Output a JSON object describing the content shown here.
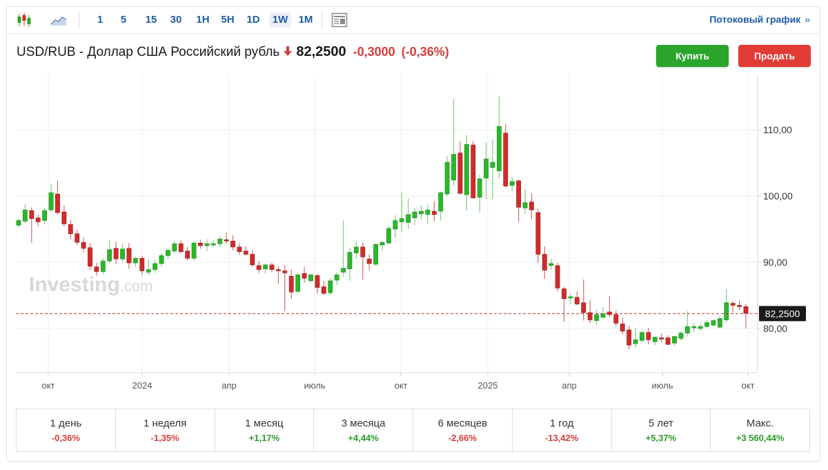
{
  "toolbar": {
    "timeframes": [
      "1",
      "5",
      "15",
      "30",
      "1H",
      "5H",
      "1D",
      "1W",
      "1M"
    ],
    "active_timeframe": "1W",
    "stream_link": "Потоковый график",
    "stream_chevron": "»"
  },
  "header": {
    "title": "USD/RUB - Доллар США Российский рубль",
    "price": "82,2500",
    "change": "-0,3000",
    "change_pct": "(-0,36%)",
    "direction_icon": "down-arrow-icon",
    "buy_label": "Купить",
    "sell_label": "Продать"
  },
  "colors": {
    "up": "#2ab82a",
    "down": "#d42a2a",
    "accent": "#1e5ba8"
  },
  "watermark": {
    "brand": "Investing",
    "suffix": ".com"
  },
  "chart_data": {
    "type": "candlestick",
    "yaxis": {
      "ticks": [
        80,
        90,
        100,
        110
      ],
      "tick_labels": [
        "80,00",
        "90,00",
        "100,00",
        "110,00"
      ],
      "position": "right"
    },
    "xaxis": {
      "tick_labels": [
        "окт",
        "2024",
        "апр",
        "июль",
        "окт",
        "2025",
        "апр",
        "июль",
        "окт"
      ]
    },
    "current_price": 82.25,
    "current_price_label": "82,2500",
    "grid": true,
    "candles": [
      {
        "o": 95.6,
        "h": 96.6,
        "l": 95.2,
        "c": 96.3
      },
      {
        "o": 96.2,
        "h": 98.8,
        "l": 95.9,
        "c": 97.9
      },
      {
        "o": 97.8,
        "h": 98.3,
        "l": 92.9,
        "c": 96.6
      },
      {
        "o": 96.7,
        "h": 97.2,
        "l": 95.4,
        "c": 96.1
      },
      {
        "o": 96.3,
        "h": 98.2,
        "l": 95.8,
        "c": 97.8
      },
      {
        "o": 97.9,
        "h": 101.8,
        "l": 97.6,
        "c": 100.5
      },
      {
        "o": 100.3,
        "h": 102.3,
        "l": 97.2,
        "c": 97.5
      },
      {
        "o": 97.6,
        "h": 98.6,
        "l": 95.4,
        "c": 95.8
      },
      {
        "o": 95.7,
        "h": 96.4,
        "l": 93.5,
        "c": 94.3
      },
      {
        "o": 94.3,
        "h": 94.9,
        "l": 92.6,
        "c": 93.0
      },
      {
        "o": 93.0,
        "h": 93.7,
        "l": 91.5,
        "c": 92.1
      },
      {
        "o": 92.2,
        "h": 92.9,
        "l": 88.8,
        "c": 89.4
      },
      {
        "o": 89.3,
        "h": 89.9,
        "l": 88.0,
        "c": 88.6
      },
      {
        "o": 88.6,
        "h": 90.6,
        "l": 88.2,
        "c": 90.2
      },
      {
        "o": 90.2,
        "h": 93.3,
        "l": 89.8,
        "c": 91.9
      },
      {
        "o": 92.1,
        "h": 93.1,
        "l": 89.7,
        "c": 90.5
      },
      {
        "o": 90.5,
        "h": 92.8,
        "l": 90.1,
        "c": 92.0
      },
      {
        "o": 92.1,
        "h": 92.9,
        "l": 89.0,
        "c": 89.9
      },
      {
        "o": 89.9,
        "h": 90.8,
        "l": 89.3,
        "c": 90.6
      },
      {
        "o": 90.6,
        "h": 91.0,
        "l": 88.1,
        "c": 88.7
      },
      {
        "o": 88.5,
        "h": 90.4,
        "l": 88.1,
        "c": 88.9
      },
      {
        "o": 88.9,
        "h": 90.3,
        "l": 88.4,
        "c": 89.8
      },
      {
        "o": 89.8,
        "h": 91.4,
        "l": 89.3,
        "c": 91.0
      },
      {
        "o": 91.0,
        "h": 92.2,
        "l": 90.5,
        "c": 91.8
      },
      {
        "o": 91.7,
        "h": 93.2,
        "l": 91.4,
        "c": 92.8
      },
      {
        "o": 92.8,
        "h": 93.3,
        "l": 91.3,
        "c": 91.6
      },
      {
        "o": 91.7,
        "h": 92.3,
        "l": 90.3,
        "c": 90.6
      },
      {
        "o": 90.6,
        "h": 93.2,
        "l": 90.3,
        "c": 92.9
      },
      {
        "o": 92.9,
        "h": 93.4,
        "l": 92.0,
        "c": 92.5
      },
      {
        "o": 92.5,
        "h": 93.5,
        "l": 91.7,
        "c": 92.8
      },
      {
        "o": 92.6,
        "h": 93.4,
        "l": 92.3,
        "c": 92.8
      },
      {
        "o": 92.8,
        "h": 93.9,
        "l": 92.3,
        "c": 93.5
      },
      {
        "o": 93.4,
        "h": 94.5,
        "l": 92.8,
        "c": 93.2
      },
      {
        "o": 93.2,
        "h": 94.1,
        "l": 91.8,
        "c": 92.3
      },
      {
        "o": 92.3,
        "h": 92.9,
        "l": 91.1,
        "c": 91.6
      },
      {
        "o": 91.7,
        "h": 92.4,
        "l": 91.0,
        "c": 91.2
      },
      {
        "o": 91.2,
        "h": 91.8,
        "l": 89.3,
        "c": 89.6
      },
      {
        "o": 89.5,
        "h": 90.2,
        "l": 88.4,
        "c": 88.9
      },
      {
        "o": 89.0,
        "h": 89.8,
        "l": 88.3,
        "c": 89.6
      },
      {
        "o": 89.6,
        "h": 89.9,
        "l": 88.5,
        "c": 88.9
      },
      {
        "o": 88.9,
        "h": 89.4,
        "l": 86.8,
        "c": 88.7
      },
      {
        "o": 88.7,
        "h": 89.5,
        "l": 82.6,
        "c": 88.4
      },
      {
        "o": 87.9,
        "h": 88.9,
        "l": 84.5,
        "c": 85.5
      },
      {
        "o": 85.6,
        "h": 88.4,
        "l": 85.3,
        "c": 88.1
      },
      {
        "o": 88.3,
        "h": 89.3,
        "l": 86.9,
        "c": 87.6
      },
      {
        "o": 87.2,
        "h": 88.3,
        "l": 87.0,
        "c": 88.1
      },
      {
        "o": 88.0,
        "h": 88.3,
        "l": 85.3,
        "c": 86.2
      },
      {
        "o": 86.3,
        "h": 87.2,
        "l": 85.1,
        "c": 85.3
      },
      {
        "o": 85.4,
        "h": 87.6,
        "l": 85.1,
        "c": 87.2
      },
      {
        "o": 87.3,
        "h": 88.5,
        "l": 86.6,
        "c": 88.1
      },
      {
        "o": 88.5,
        "h": 96.3,
        "l": 87.8,
        "c": 89.1
      },
      {
        "o": 89.0,
        "h": 92.2,
        "l": 87.2,
        "c": 91.5
      },
      {
        "o": 91.4,
        "h": 93.3,
        "l": 90.6,
        "c": 92.3
      },
      {
        "o": 92.3,
        "h": 93.0,
        "l": 87.4,
        "c": 90.8
      },
      {
        "o": 90.5,
        "h": 91.2,
        "l": 88.8,
        "c": 89.8
      },
      {
        "o": 89.7,
        "h": 92.9,
        "l": 89.5,
        "c": 92.7
      },
      {
        "o": 92.6,
        "h": 93.3,
        "l": 91.8,
        "c": 93.0
      },
      {
        "o": 92.9,
        "h": 95.5,
        "l": 92.7,
        "c": 95.1
      },
      {
        "o": 95.0,
        "h": 97.1,
        "l": 93.7,
        "c": 96.3
      },
      {
        "o": 96.1,
        "h": 100.6,
        "l": 94.6,
        "c": 96.6
      },
      {
        "o": 96.0,
        "h": 99.6,
        "l": 95.0,
        "c": 97.2
      },
      {
        "o": 96.7,
        "h": 98.2,
        "l": 95.6,
        "c": 97.6
      },
      {
        "o": 97.3,
        "h": 98.6,
        "l": 96.4,
        "c": 97.7
      },
      {
        "o": 97.2,
        "h": 98.7,
        "l": 95.8,
        "c": 97.9
      },
      {
        "o": 97.7,
        "h": 99.2,
        "l": 96.2,
        "c": 97.2
      },
      {
        "o": 97.7,
        "h": 100.7,
        "l": 96.3,
        "c": 100.5
      },
      {
        "o": 100.3,
        "h": 106.0,
        "l": 100.0,
        "c": 105.1
      },
      {
        "o": 102.4,
        "h": 114.6,
        "l": 101.6,
        "c": 106.3
      },
      {
        "o": 106.5,
        "h": 108.3,
        "l": 100.2,
        "c": 100.4
      },
      {
        "o": 100.2,
        "h": 109.2,
        "l": 97.8,
        "c": 107.8
      },
      {
        "o": 107.7,
        "h": 108.3,
        "l": 99.6,
        "c": 99.7
      },
      {
        "o": 99.8,
        "h": 103.2,
        "l": 97.5,
        "c": 102.6
      },
      {
        "o": 102.7,
        "h": 108.1,
        "l": 99.5,
        "c": 105.6
      },
      {
        "o": 104.3,
        "h": 108.5,
        "l": 99.5,
        "c": 105.1
      },
      {
        "o": 103.8,
        "h": 115.0,
        "l": 102.7,
        "c": 110.5
      },
      {
        "o": 109.5,
        "h": 110.9,
        "l": 101.3,
        "c": 101.5
      },
      {
        "o": 101.6,
        "h": 102.9,
        "l": 100.7,
        "c": 102.2
      },
      {
        "o": 102.3,
        "h": 102.4,
        "l": 96.1,
        "c": 98.3
      },
      {
        "o": 98.2,
        "h": 101.0,
        "l": 97.3,
        "c": 99.0
      },
      {
        "o": 99.1,
        "h": 100.4,
        "l": 96.5,
        "c": 97.9
      },
      {
        "o": 97.5,
        "h": 98.1,
        "l": 89.9,
        "c": 91.2
      },
      {
        "o": 91.2,
        "h": 92.4,
        "l": 87.5,
        "c": 88.8
      },
      {
        "o": 89.5,
        "h": 90.5,
        "l": 88.9,
        "c": 89.8
      },
      {
        "o": 89.5,
        "h": 89.9,
        "l": 85.6,
        "c": 86.1
      },
      {
        "o": 86.0,
        "h": 86.3,
        "l": 81.0,
        "c": 84.5
      },
      {
        "o": 84.6,
        "h": 85.3,
        "l": 83.7,
        "c": 84.8
      },
      {
        "o": 84.7,
        "h": 85.6,
        "l": 83.5,
        "c": 83.7
      },
      {
        "o": 83.9,
        "h": 87.4,
        "l": 81.2,
        "c": 82.4
      },
      {
        "o": 82.4,
        "h": 84.3,
        "l": 80.8,
        "c": 81.3
      },
      {
        "o": 81.2,
        "h": 82.8,
        "l": 80.6,
        "c": 82.1
      },
      {
        "o": 81.7,
        "h": 83.2,
        "l": 81.5,
        "c": 82.2
      },
      {
        "o": 82.5,
        "h": 84.9,
        "l": 81.7,
        "c": 82.1
      },
      {
        "o": 82.1,
        "h": 82.7,
        "l": 80.3,
        "c": 80.8
      },
      {
        "o": 80.7,
        "h": 81.6,
        "l": 79.1,
        "c": 79.6
      },
      {
        "o": 79.8,
        "h": 80.4,
        "l": 76.8,
        "c": 77.5
      },
      {
        "o": 77.7,
        "h": 80.1,
        "l": 77.1,
        "c": 78.3
      },
      {
        "o": 78.2,
        "h": 79.7,
        "l": 77.9,
        "c": 79.4
      },
      {
        "o": 79.4,
        "h": 80.1,
        "l": 77.6,
        "c": 78.3
      },
      {
        "o": 78.0,
        "h": 78.8,
        "l": 77.5,
        "c": 78.7
      },
      {
        "o": 78.6,
        "h": 79.2,
        "l": 77.9,
        "c": 78.4
      },
      {
        "o": 78.6,
        "h": 79.0,
        "l": 77.5,
        "c": 77.6
      },
      {
        "o": 77.8,
        "h": 78.9,
        "l": 77.4,
        "c": 78.8
      },
      {
        "o": 78.5,
        "h": 79.6,
        "l": 78.2,
        "c": 79.3
      },
      {
        "o": 79.3,
        "h": 82.6,
        "l": 78.8,
        "c": 80.3
      },
      {
        "o": 80.1,
        "h": 80.8,
        "l": 79.5,
        "c": 80.3
      },
      {
        "o": 80.0,
        "h": 80.7,
        "l": 79.6,
        "c": 80.3
      },
      {
        "o": 80.3,
        "h": 81.3,
        "l": 80.1,
        "c": 80.9
      },
      {
        "o": 80.5,
        "h": 81.4,
        "l": 80.3,
        "c": 81.2
      },
      {
        "o": 80.2,
        "h": 81.9,
        "l": 80.0,
        "c": 81.5
      },
      {
        "o": 81.3,
        "h": 85.9,
        "l": 80.9,
        "c": 83.9
      },
      {
        "o": 83.8,
        "h": 84.1,
        "l": 82.4,
        "c": 83.5
      },
      {
        "o": 83.5,
        "h": 84.2,
        "l": 82.8,
        "c": 83.3
      },
      {
        "o": 83.3,
        "h": 83.7,
        "l": 80.0,
        "c": 82.3
      }
    ]
  },
  "performance": [
    {
      "label": "1 день",
      "value": "-0,36%",
      "trend": "neg"
    },
    {
      "label": "1 неделя",
      "value": "-1,35%",
      "trend": "neg"
    },
    {
      "label": "1 месяц",
      "value": "+1,17%",
      "trend": "pos"
    },
    {
      "label": "3 месяца",
      "value": "+4,44%",
      "trend": "pos"
    },
    {
      "label": "6 месяцев",
      "value": "-2,66%",
      "trend": "neg"
    },
    {
      "label": "1 год",
      "value": "-13,42%",
      "trend": "neg"
    },
    {
      "label": "5 лет",
      "value": "+5,37%",
      "trend": "pos"
    },
    {
      "label": "Макс.",
      "value": "+3 560,44%",
      "trend": "pos"
    }
  ]
}
